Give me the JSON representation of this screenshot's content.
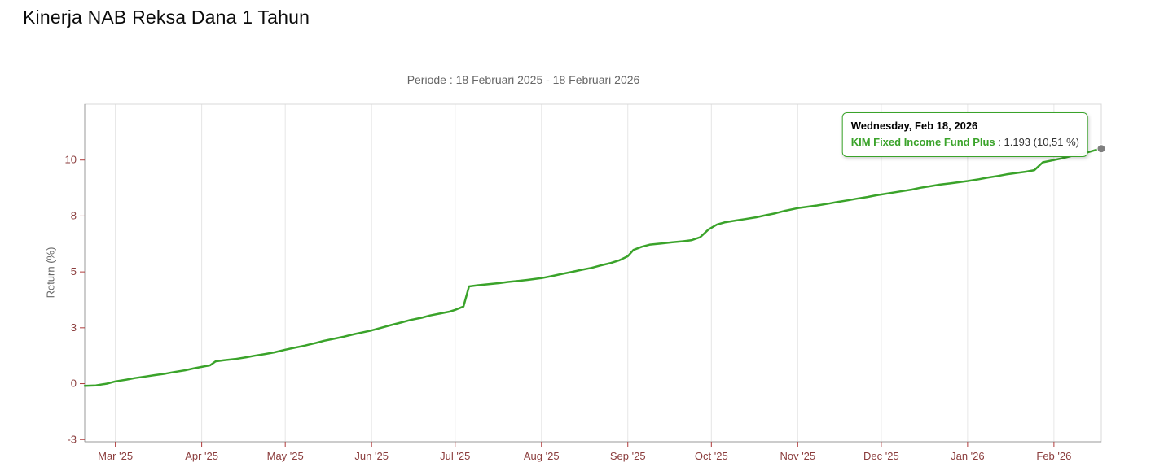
{
  "page": {
    "title": "Kinerja NAB Reksa Dana 1 Tahun"
  },
  "chart_data": {
    "type": "line",
    "title": "Periode : 18 Februari 2025 - 18 Februari 2026",
    "xlabel": "",
    "ylabel": "Return (%)",
    "x_unit": "days since 18 Feb 2025",
    "xlim": [
      0,
      365
    ],
    "ylim": [
      -2.6,
      12.5
    ],
    "grid": "vertical-only",
    "legend": "none",
    "yticks": [
      {
        "y": -2.5,
        "label": "-3"
      },
      {
        "y": 0,
        "label": "0"
      },
      {
        "y": 2.5,
        "label": "3"
      },
      {
        "y": 5,
        "label": "5"
      },
      {
        "y": 7.5,
        "label": "8"
      },
      {
        "y": 10,
        "label": "10"
      }
    ],
    "xticks": [
      {
        "x": 11,
        "label": "Mar '25"
      },
      {
        "x": 42,
        "label": "Apr '25"
      },
      {
        "x": 72,
        "label": "May '25"
      },
      {
        "x": 103,
        "label": "Jun '25"
      },
      {
        "x": 133,
        "label": "Jul '25"
      },
      {
        "x": 164,
        "label": "Aug '25"
      },
      {
        "x": 195,
        "label": "Sep '25"
      },
      {
        "x": 225,
        "label": "Oct '25"
      },
      {
        "x": 256,
        "label": "Nov '25"
      },
      {
        "x": 286,
        "label": "Dec '25"
      },
      {
        "x": 317,
        "label": "Jan '26"
      },
      {
        "x": 348,
        "label": "Feb '26"
      }
    ],
    "series": [
      {
        "name": "KIM Fixed Income Fund Plus",
        "color": "#3aa32a",
        "points": [
          [
            0,
            -0.1
          ],
          [
            4,
            -0.08
          ],
          [
            8,
            0
          ],
          [
            11,
            0.1
          ],
          [
            15,
            0.18
          ],
          [
            18,
            0.25
          ],
          [
            22,
            0.32
          ],
          [
            25,
            0.38
          ],
          [
            29,
            0.45
          ],
          [
            32,
            0.52
          ],
          [
            36,
            0.6
          ],
          [
            39,
            0.68
          ],
          [
            42,
            0.75
          ],
          [
            45,
            0.82
          ],
          [
            47,
            1
          ],
          [
            50,
            1.05
          ],
          [
            54,
            1.1
          ],
          [
            58,
            1.18
          ],
          [
            61,
            1.25
          ],
          [
            65,
            1.33
          ],
          [
            68,
            1.4
          ],
          [
            72,
            1.52
          ],
          [
            75,
            1.6
          ],
          [
            79,
            1.7
          ],
          [
            83,
            1.82
          ],
          [
            86,
            1.92
          ],
          [
            90,
            2.02
          ],
          [
            93,
            2.1
          ],
          [
            97,
            2.22
          ],
          [
            100,
            2.3
          ],
          [
            103,
            2.38
          ],
          [
            107,
            2.52
          ],
          [
            110,
            2.62
          ],
          [
            114,
            2.75
          ],
          [
            117,
            2.85
          ],
          [
            121,
            2.95
          ],
          [
            124,
            3.05
          ],
          [
            128,
            3.15
          ],
          [
            131,
            3.22
          ],
          [
            133,
            3.3
          ],
          [
            136,
            3.45
          ],
          [
            138,
            4.35
          ],
          [
            141,
            4.4
          ],
          [
            145,
            4.45
          ],
          [
            149,
            4.5
          ],
          [
            152,
            4.55
          ],
          [
            156,
            4.6
          ],
          [
            159,
            4.64
          ],
          [
            164,
            4.72
          ],
          [
            168,
            4.82
          ],
          [
            171,
            4.9
          ],
          [
            175,
            5
          ],
          [
            178,
            5.08
          ],
          [
            182,
            5.18
          ],
          [
            185,
            5.28
          ],
          [
            189,
            5.4
          ],
          [
            192,
            5.52
          ],
          [
            195,
            5.7
          ],
          [
            197,
            5.98
          ],
          [
            200,
            6.12
          ],
          [
            203,
            6.22
          ],
          [
            207,
            6.27
          ],
          [
            211,
            6.32
          ],
          [
            215,
            6.37
          ],
          [
            218,
            6.42
          ],
          [
            221,
            6.55
          ],
          [
            224,
            6.9
          ],
          [
            227,
            7.12
          ],
          [
            230,
            7.22
          ],
          [
            234,
            7.3
          ],
          [
            237,
            7.36
          ],
          [
            241,
            7.44
          ],
          [
            244,
            7.52
          ],
          [
            248,
            7.62
          ],
          [
            251,
            7.72
          ],
          [
            256,
            7.85
          ],
          [
            260,
            7.92
          ],
          [
            263,
            7.97
          ],
          [
            267,
            8.05
          ],
          [
            270,
            8.12
          ],
          [
            274,
            8.2
          ],
          [
            277,
            8.27
          ],
          [
            281,
            8.35
          ],
          [
            284,
            8.42
          ],
          [
            286,
            8.46
          ],
          [
            290,
            8.54
          ],
          [
            293,
            8.6
          ],
          [
            297,
            8.68
          ],
          [
            300,
            8.76
          ],
          [
            304,
            8.84
          ],
          [
            307,
            8.9
          ],
          [
            311,
            8.96
          ],
          [
            314,
            9.01
          ],
          [
            317,
            9.06
          ],
          [
            321,
            9.14
          ],
          [
            324,
            9.21
          ],
          [
            328,
            9.29
          ],
          [
            331,
            9.36
          ],
          [
            335,
            9.43
          ],
          [
            338,
            9.48
          ],
          [
            341,
            9.55
          ],
          [
            344,
            9.9
          ],
          [
            348,
            10
          ],
          [
            351,
            10.08
          ],
          [
            355,
            10.2
          ],
          [
            358,
            10.28
          ],
          [
            361,
            10.38
          ],
          [
            363,
            10.45
          ],
          [
            365,
            10.51
          ]
        ]
      }
    ],
    "tooltip": {
      "header": "Wednesday, Feb 18, 2026",
      "series_name": "KIM Fixed Income Fund Plus",
      "nav_value": "1.193",
      "return_pct": "10,51 %",
      "value_text": " : 1.193 (10,51 %)"
    },
    "colors": {
      "line": "#3aa32a",
      "marker": "#7f7f7f",
      "grid": "#e6e6e6",
      "border": "#d8d8d8",
      "axis": "#999999",
      "tick": "#b03a3a",
      "tick_label": "#8b3d3d",
      "title": "#666666"
    }
  }
}
